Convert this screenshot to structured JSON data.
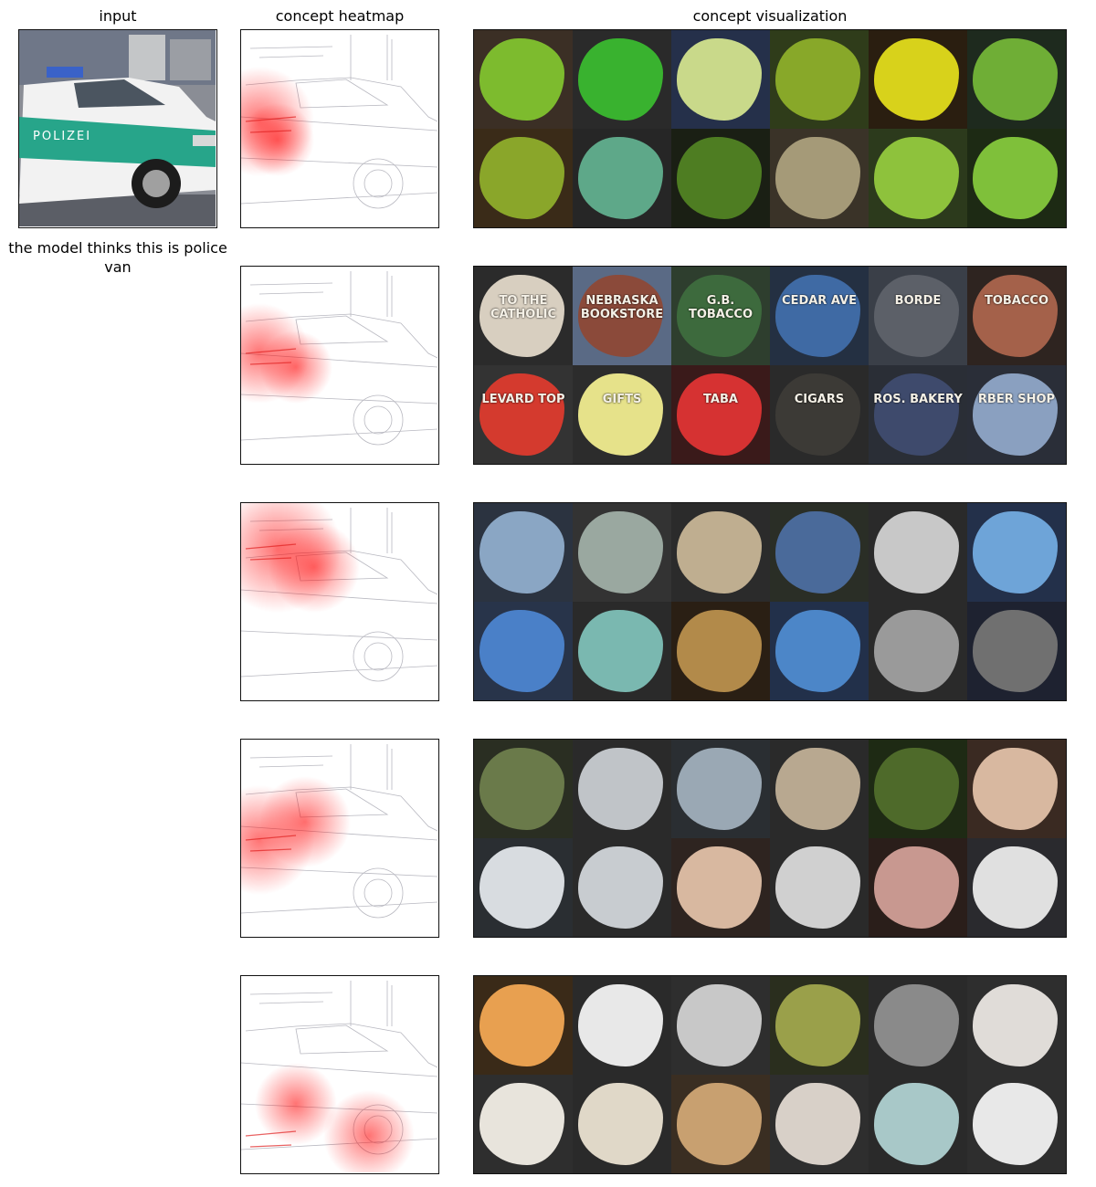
{
  "headers": {
    "input": "input",
    "heatmap": "concept heatmap",
    "visualization": "concept visualization"
  },
  "caption": "the model thinks this is police van",
  "input_image": {
    "subject": "green and white police car",
    "door_text": "POLIZEI"
  },
  "rows": [
    {
      "heat_focus": "front door text region",
      "tiles": [
        {
          "bg": "#3b2f25",
          "fg": "#7dbb2e"
        },
        {
          "bg": "#2a2a2a",
          "fg": "#39b22f"
        },
        {
          "bg": "#25304a",
          "fg": "#c9d98a"
        },
        {
          "bg": "#2f3c1a",
          "fg": "#88a829"
        },
        {
          "bg": "#2a1e10",
          "fg": "#d8d21b"
        },
        {
          "bg": "#1e2a1e",
          "fg": "#6fae36"
        },
        {
          "bg": "#3a2b18",
          "fg": "#8aa62a"
        },
        {
          "bg": "#262626",
          "fg": "#5ea889"
        },
        {
          "bg": "#1a1f14",
          "fg": "#4e7d22"
        },
        {
          "bg": "#3a3328",
          "fg": "#a59a78"
        },
        {
          "bg": "#2c3a1c",
          "fg": "#8ec23c"
        },
        {
          "bg": "#1d2a14",
          "fg": "#7fc03a"
        }
      ],
      "tile_text": [
        "",
        "",
        "",
        "",
        "",
        "",
        "",
        "",
        "",
        "",
        "",
        ""
      ]
    },
    {
      "heat_focus": "door lettering",
      "tiles": [
        {
          "bg": "#2b2b2b",
          "fg": "#d8cfc0"
        },
        {
          "bg": "#5a6a85",
          "fg": "#8b4a3a"
        },
        {
          "bg": "#2e3e2e",
          "fg": "#3d6a3d"
        },
        {
          "bg": "#243042",
          "fg": "#3f6aa4"
        },
        {
          "bg": "#3a3f48",
          "fg": "#5c6068"
        },
        {
          "bg": "#2e2420",
          "fg": "#a4614a"
        },
        {
          "bg": "#333",
          "fg": "#d43a2e"
        },
        {
          "bg": "#2c2c2c",
          "fg": "#e6e28a"
        },
        {
          "bg": "#3a1a1a",
          "fg": "#d63232"
        },
        {
          "bg": "#2a2a2a",
          "fg": "#3c3a36"
        },
        {
          "bg": "#2a2e36",
          "fg": "#3e4a6c"
        },
        {
          "bg": "#2a2e38",
          "fg": "#8aa0c0"
        }
      ],
      "tile_text": [
        "TO THE CATHOLIC",
        "NEBRASKA BOOKSTORE",
        "G.B. TOBACCO",
        "CEDAR AVE",
        "BORDE",
        "TOBACCO",
        "LEVARD TOP",
        "GIFTS",
        "TABA",
        "CIGARS",
        "ROS. BAKERY",
        "RBER SHOP"
      ]
    },
    {
      "heat_focus": "roof and windows",
      "tiles": [
        {
          "bg": "#2b3340",
          "fg": "#8aa6c4"
        },
        {
          "bg": "#333",
          "fg": "#9aa8a0"
        },
        {
          "bg": "#2b2b2b",
          "fg": "#bfae90"
        },
        {
          "bg": "#2a2e26",
          "fg": "#4a6a9a"
        },
        {
          "bg": "#2a2a2a",
          "fg": "#c8c8c8"
        },
        {
          "bg": "#23304a",
          "fg": "#6ea4d8"
        },
        {
          "bg": "#28344a",
          "fg": "#4a80c8"
        },
        {
          "bg": "#2a2a2a",
          "fg": "#7ab8b0"
        },
        {
          "bg": "#2a1f14",
          "fg": "#b28a4a"
        },
        {
          "bg": "#22304a",
          "fg": "#4c86c8"
        },
        {
          "bg": "#2a2a2a",
          "fg": "#9a9a9a"
        },
        {
          "bg": "#1e2230",
          "fg": "#707070"
        }
      ],
      "tile_text": [
        "",
        "",
        "",
        "",
        "",
        "",
        "",
        "",
        "",
        "",
        "",
        ""
      ]
    },
    {
      "heat_focus": "side body panel",
      "tiles": [
        {
          "bg": "#2a2e22",
          "fg": "#6a7a4a"
        },
        {
          "bg": "#2a2a2a",
          "fg": "#c0c4c8"
        },
        {
          "bg": "#2a2e32",
          "fg": "#9aa8b4"
        },
        {
          "bg": "#2a2a2a",
          "fg": "#b8a890"
        },
        {
          "bg": "#1e2a14",
          "fg": "#4e6a2a"
        },
        {
          "bg": "#3a2a22",
          "fg": "#d8b8a0"
        },
        {
          "bg": "#2a2e32",
          "fg": "#d8dce0"
        },
        {
          "bg": "#2a2a2a",
          "fg": "#c8ccd0"
        },
        {
          "bg": "#2e2420",
          "fg": "#d8b8a0"
        },
        {
          "bg": "#2a2a2a",
          "fg": "#d0d0d0"
        },
        {
          "bg": "#2a1e1a",
          "fg": "#c89890"
        },
        {
          "bg": "#2a2a2e",
          "fg": "#e0e0e0"
        }
      ],
      "tile_text": [
        "",
        "",
        "",
        "",
        "",
        "",
        "",
        "",
        "",
        "",
        "",
        ""
      ]
    },
    {
      "heat_focus": "wheel and lower body",
      "tiles": [
        {
          "bg": "#3a2a18",
          "fg": "#e8a050"
        },
        {
          "bg": "#2a2a2a",
          "fg": "#e8e8e8"
        },
        {
          "bg": "#2e2e2e",
          "fg": "#c8c8c8"
        },
        {
          "bg": "#2a2e1e",
          "fg": "#9aa04a"
        },
        {
          "bg": "#2a2a2a",
          "fg": "#8a8a8a"
        },
        {
          "bg": "#2e2e2e",
          "fg": "#e0dcd8"
        },
        {
          "bg": "#2e2e2e",
          "fg": "#e8e4dc"
        },
        {
          "bg": "#2a2a2a",
          "fg": "#e0d8c8"
        },
        {
          "bg": "#3a2e22",
          "fg": "#c8a070"
        },
        {
          "bg": "#2e2e2e",
          "fg": "#d8d0c8"
        },
        {
          "bg": "#2a2a2a",
          "fg": "#a8c8c8"
        },
        {
          "bg": "#2e2e2e",
          "fg": "#e8e8e8"
        }
      ],
      "tile_text": [
        "",
        "",
        "",
        "",
        "",
        "",
        "",
        "",
        "",
        "",
        "",
        ""
      ]
    }
  ]
}
